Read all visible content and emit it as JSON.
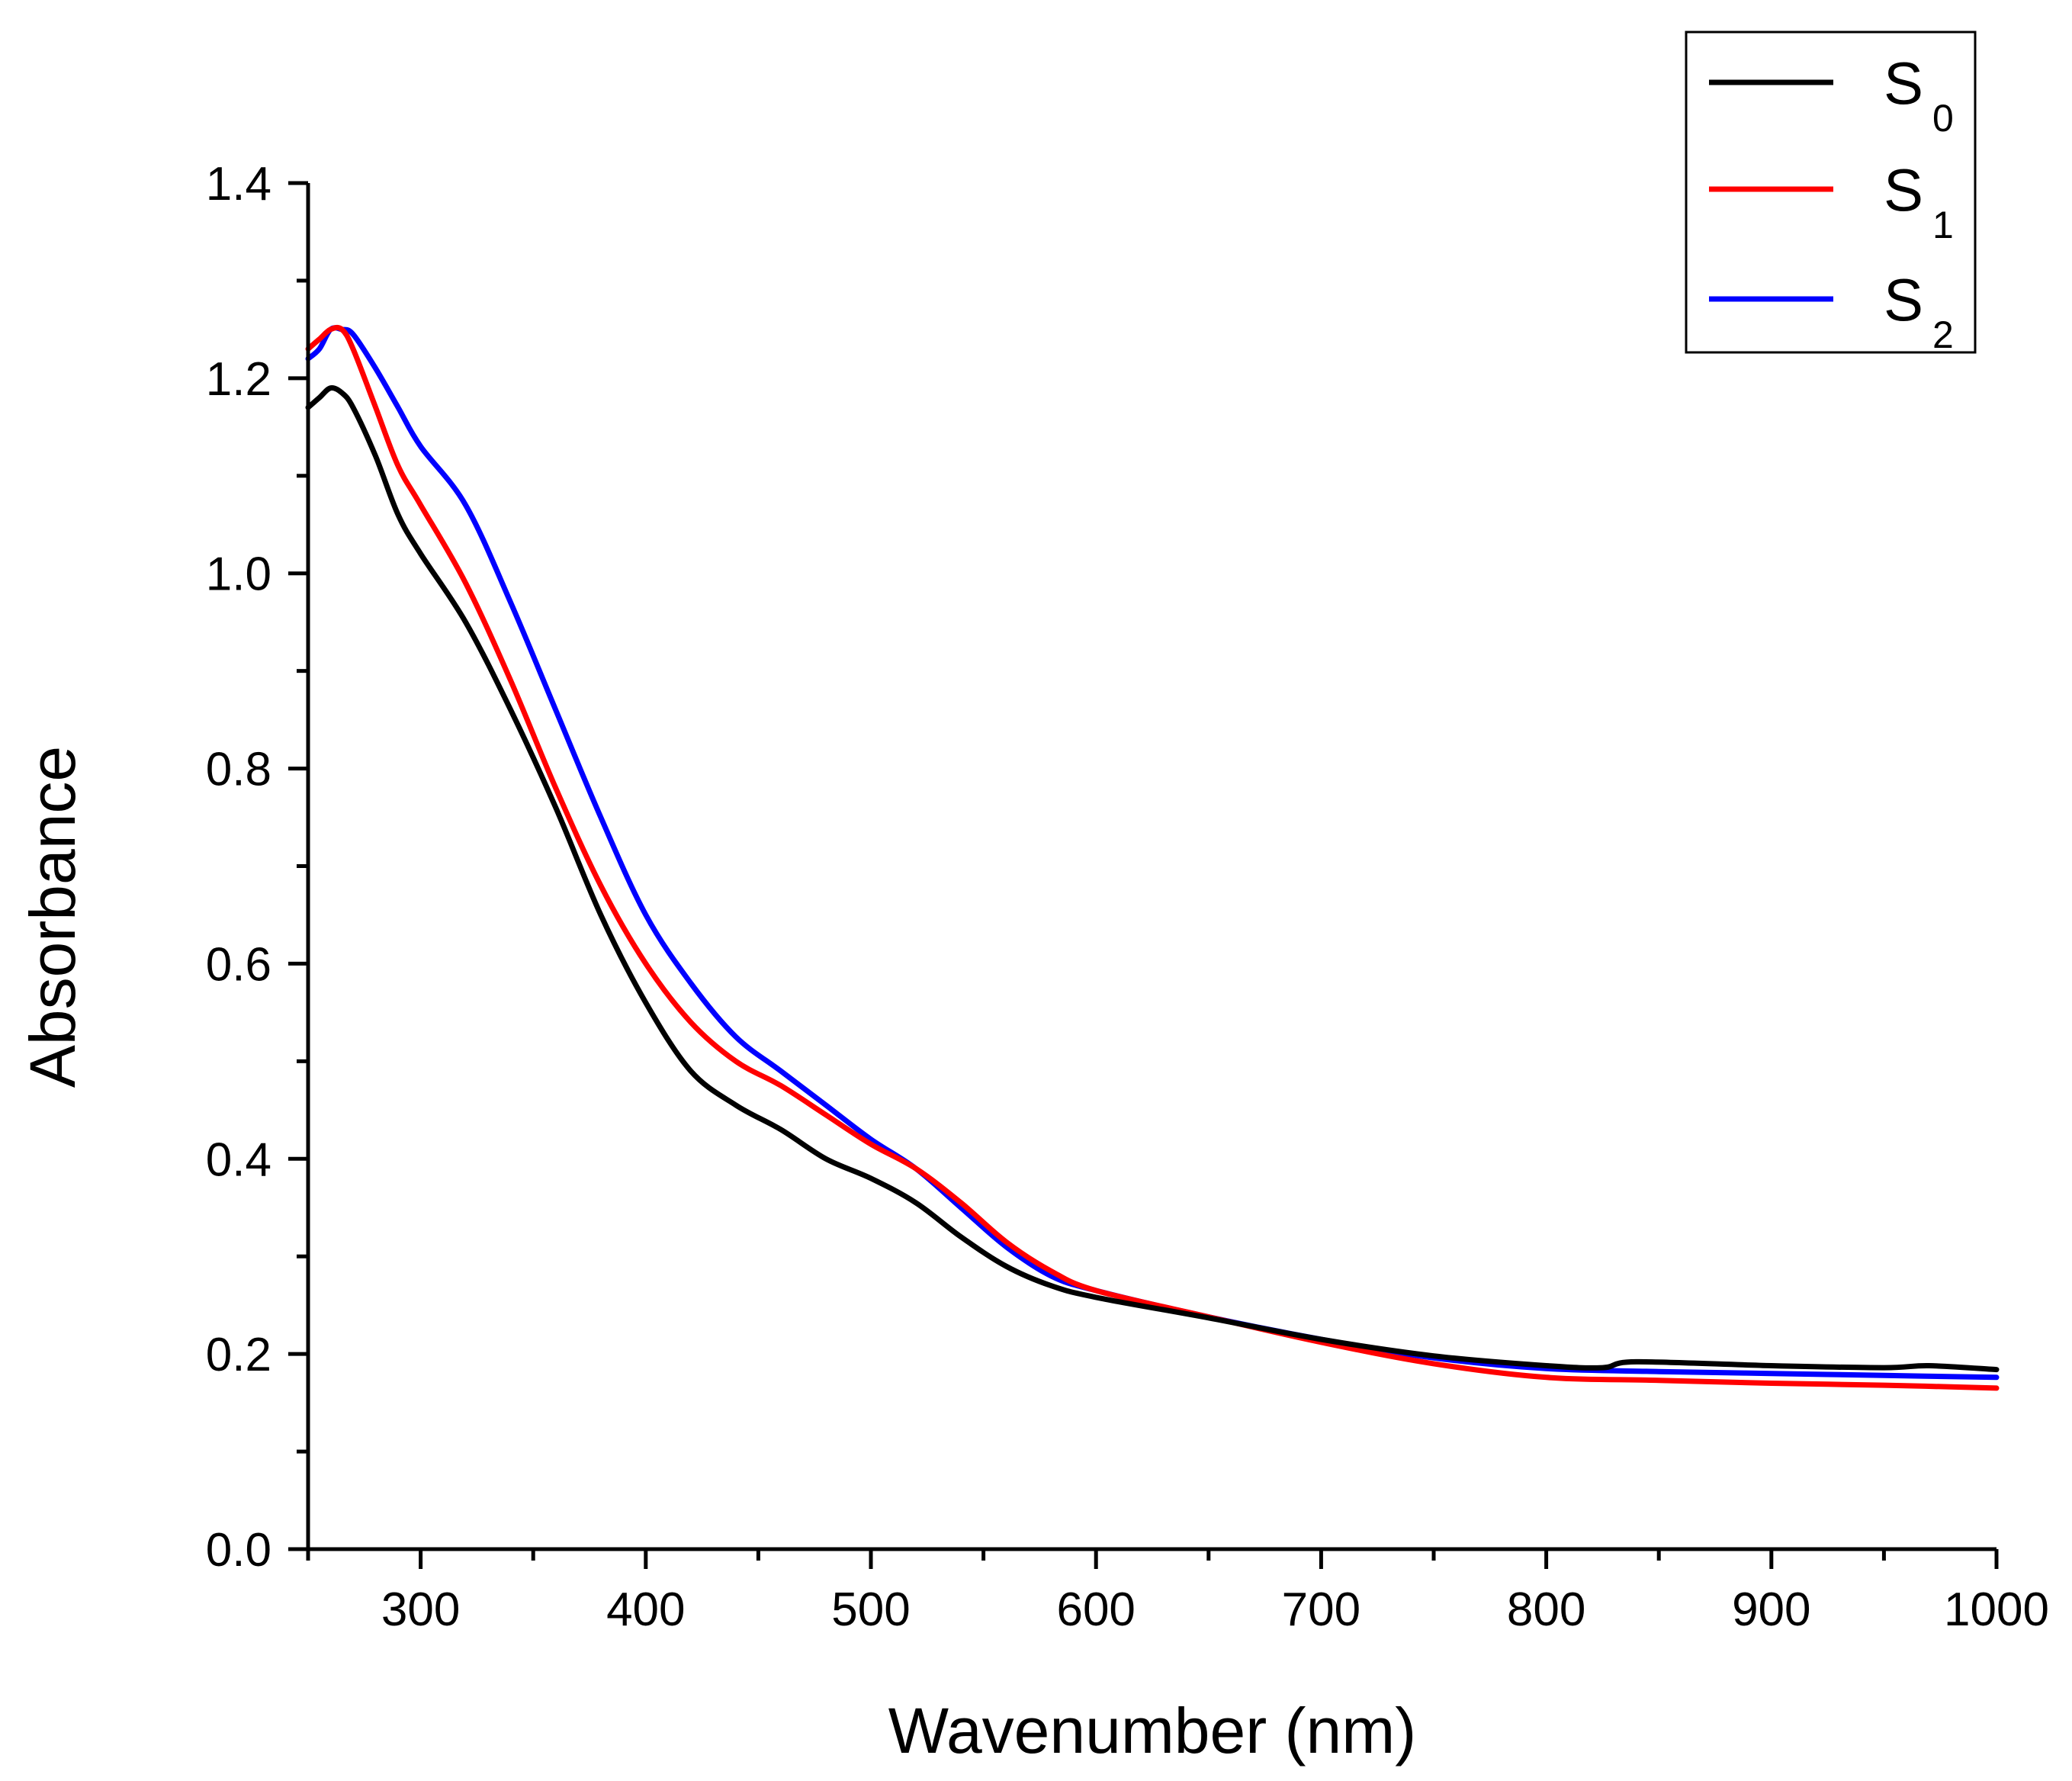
{
  "chart_data": {
    "type": "line",
    "title": "",
    "xlabel": "Wavenumber (nm)",
    "ylabel": "Absorbance",
    "xlim": [
      250,
      1000
    ],
    "ylim": [
      0.0,
      1.4
    ],
    "grid": false,
    "legend_position": "top-right",
    "x_ticks": [
      300,
      400,
      500,
      600,
      700,
      800,
      900,
      1000
    ],
    "x_tick_labels": [
      "300",
      "400",
      "500",
      "600",
      "700",
      "800",
      "900",
      "1000"
    ],
    "x_minor_ticks": [
      250,
      350,
      450,
      550,
      650,
      750,
      850,
      950
    ],
    "y_ticks": [
      0.0,
      0.2,
      0.4,
      0.6,
      0.8,
      1.0,
      1.2,
      1.4
    ],
    "y_tick_labels": [
      "0.0",
      "0.2",
      "0.4",
      "0.6",
      "0.8",
      "1.0",
      "1.2",
      "1.4"
    ],
    "y_minor_ticks": [
      0.1,
      0.3,
      0.5,
      0.7,
      0.9,
      1.1,
      1.3
    ],
    "series": [
      {
        "name": "S",
        "subscript": "0",
        "color": "#000000",
        "x": [
          250,
          255,
          260,
          265,
          270,
          280,
          290,
          300,
          320,
          340,
          360,
          380,
          400,
          420,
          440,
          460,
          480,
          500,
          520,
          540,
          560,
          580,
          600,
          650,
          700,
          750,
          800,
          825,
          840,
          900,
          950,
          970,
          1000
        ],
        "y": [
          1.17,
          1.18,
          1.19,
          1.185,
          1.17,
          1.12,
          1.06,
          1.02,
          0.95,
          0.86,
          0.76,
          0.65,
          0.56,
          0.49,
          0.455,
          0.43,
          0.4,
          0.38,
          0.355,
          0.32,
          0.29,
          0.27,
          0.258,
          0.237,
          0.215,
          0.198,
          0.188,
          0.186,
          0.192,
          0.188,
          0.186,
          0.188,
          0.184
        ]
      },
      {
        "name": "S",
        "subscript": "1",
        "color": "#ff0000",
        "x": [
          250,
          255,
          260,
          265,
          270,
          280,
          290,
          300,
          320,
          340,
          360,
          380,
          400,
          420,
          440,
          460,
          480,
          500,
          520,
          540,
          560,
          580,
          600,
          650,
          700,
          750,
          800,
          850,
          900,
          950,
          1000
        ],
        "y": [
          1.23,
          1.24,
          1.25,
          1.25,
          1.23,
          1.17,
          1.11,
          1.07,
          0.99,
          0.89,
          0.78,
          0.68,
          0.6,
          0.54,
          0.5,
          0.475,
          0.445,
          0.415,
          0.39,
          0.355,
          0.315,
          0.285,
          0.265,
          0.238,
          0.212,
          0.19,
          0.176,
          0.173,
          0.17,
          0.168,
          0.165
        ]
      },
      {
        "name": "S",
        "subscript": "2",
        "color": "#0000ff",
        "x": [
          250,
          255,
          260,
          265,
          270,
          280,
          290,
          300,
          320,
          340,
          360,
          380,
          400,
          420,
          440,
          460,
          480,
          500,
          520,
          540,
          560,
          580,
          600,
          650,
          700,
          750,
          800,
          850,
          900,
          950,
          1000
        ],
        "y": [
          1.22,
          1.23,
          1.25,
          1.25,
          1.245,
          1.21,
          1.17,
          1.13,
          1.07,
          0.97,
          0.86,
          0.75,
          0.65,
          0.58,
          0.525,
          0.49,
          0.455,
          0.42,
          0.39,
          0.35,
          0.31,
          0.28,
          0.265,
          0.238,
          0.215,
          0.196,
          0.185,
          0.182,
          0.18,
          0.178,
          0.176
        ]
      }
    ]
  }
}
